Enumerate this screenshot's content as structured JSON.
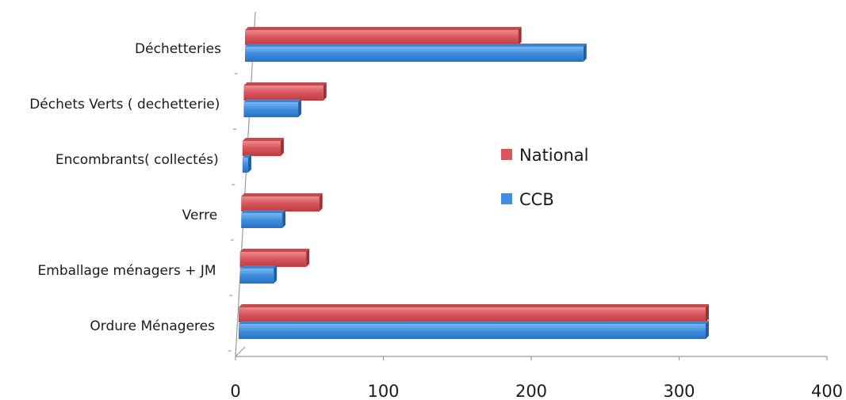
{
  "chart_data": {
    "type": "bar",
    "orientation": "horizontal",
    "categories": [
      "Déchetteries",
      "Déchets Verts ( dechetterie)",
      "Encombrants( collectés)",
      "Verre",
      "Emballage ménagers + JM",
      "Ordure Ménageres"
    ],
    "series": [
      {
        "name": "National",
        "values": [
          189,
          58,
          30,
          57,
          49,
          320
        ],
        "color": "#d9565d"
      },
      {
        "name": "CCB",
        "values": [
          233,
          41,
          8,
          32,
          27,
          320
        ],
        "color": "#3f8fe0"
      }
    ],
    "xlim": [
      0,
      400
    ],
    "xticks": [
      "0",
      "100",
      "200",
      "300",
      "400"
    ],
    "grid": false,
    "legend_position": "center-right",
    "title": "",
    "xlabel": "",
    "ylabel": ""
  }
}
